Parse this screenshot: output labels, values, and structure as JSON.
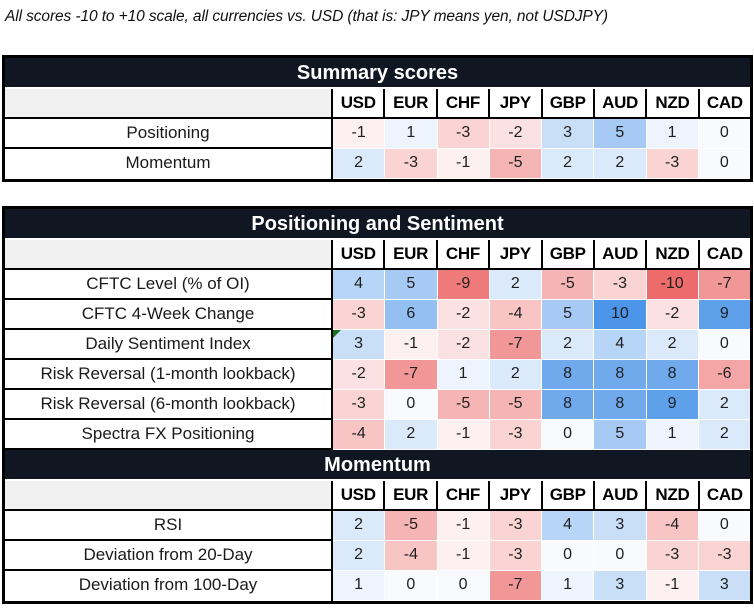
{
  "note": "All scores -10 to +10 scale, all currencies vs. USD (that is: JPY means yen, not USDJPY)",
  "currencies": [
    "USD",
    "EUR",
    "CHF",
    "JPY",
    "GBP",
    "AUD",
    "NZD",
    "CAD"
  ],
  "colors": {
    "positive_scale_end": "#4C95E8",
    "negative_scale_end": "#ED6B6B",
    "scale_zero": "#FFFFFF",
    "scale_zero_tint": "#F8FAFD",
    "title_bar_bg": "#111722",
    "title_bar_text": "#FFFFFF",
    "label_header_bg": "#F1F1F2",
    "table_border": "#000000",
    "comment_marker_green": "#1B6E1B"
  },
  "chart_data": {
    "type": "heatmap",
    "categories": [
      "USD",
      "EUR",
      "CHF",
      "JPY",
      "GBP",
      "AUD",
      "NZD",
      "CAD"
    ],
    "value_range": [
      -10,
      10
    ],
    "sections": [
      {
        "title": "Summary scores",
        "series": [
          {
            "name": "Positioning",
            "values": [
              -1,
              1,
              -3,
              -2,
              3,
              5,
              1,
              0
            ]
          },
          {
            "name": "Momentum",
            "values": [
              2,
              -3,
              -1,
              -5,
              2,
              2,
              -3,
              0
            ]
          }
        ]
      },
      {
        "title": "Positioning and Sentiment",
        "series": [
          {
            "name": "CFTC Level (% of OI)",
            "values": [
              4,
              5,
              -9,
              2,
              -5,
              -3,
              -10,
              -7
            ]
          },
          {
            "name": "CFTC 4-Week Change",
            "values": [
              -3,
              6,
              -2,
              -4,
              5,
              10,
              -2,
              9
            ]
          },
          {
            "name": "Daily Sentiment Index",
            "values": [
              3,
              -1,
              -2,
              -7,
              2,
              4,
              2,
              0
            ]
          },
          {
            "name": "Risk Reversal (1-month lookback)",
            "values": [
              -2,
              -7,
              1,
              2,
              8,
              8,
              8,
              -6
            ]
          },
          {
            "name": "Risk Reversal (6-month lookback)",
            "values": [
              -3,
              0,
              -5,
              -5,
              8,
              8,
              9,
              2
            ]
          },
          {
            "name": "Spectra FX Positioning",
            "values": [
              -4,
              2,
              -1,
              -3,
              0,
              5,
              1,
              2
            ]
          }
        ]
      },
      {
        "title": "Momentum",
        "series": [
          {
            "name": "RSI",
            "values": [
              2,
              -5,
              -1,
              -3,
              4,
              3,
              -4,
              0
            ]
          },
          {
            "name": "Deviation from 20-Day",
            "values": [
              2,
              -4,
              -1,
              -3,
              0,
              0,
              -3,
              -3
            ]
          },
          {
            "name": "Deviation from 100-Day",
            "values": [
              1,
              0,
              0,
              -7,
              1,
              3,
              -1,
              3
            ]
          }
        ]
      }
    ]
  },
  "tables": [
    {
      "sections": [
        {
          "title": "Summary scores",
          "rows": [
            {
              "label": "Positioning",
              "values": [
                -1,
                1,
                -3,
                -2,
                3,
                5,
                1,
                0
              ]
            },
            {
              "label": "Momentum",
              "values": [
                2,
                -3,
                -1,
                -5,
                2,
                2,
                -3,
                0
              ]
            }
          ]
        }
      ]
    },
    {
      "sections": [
        {
          "title": "Positioning and Sentiment",
          "rows": [
            {
              "label": "CFTC Level (% of OI)",
              "values": [
                4,
                5,
                -9,
                2,
                -5,
                -3,
                -10,
                -7
              ]
            },
            {
              "label": "CFTC 4-Week Change",
              "values": [
                -3,
                6,
                -2,
                -4,
                5,
                10,
                -2,
                9
              ]
            },
            {
              "label": "Daily Sentiment Index",
              "values": [
                3,
                -1,
                -2,
                -7,
                2,
                4,
                2,
                0
              ],
              "comment_marker_col": 0
            },
            {
              "label": "Risk Reversal (1-month lookback)",
              "values": [
                -2,
                -7,
                1,
                2,
                8,
                8,
                8,
                -6
              ]
            },
            {
              "label": "Risk Reversal (6-month lookback)",
              "values": [
                -3,
                0,
                -5,
                -5,
                8,
                8,
                9,
                2
              ]
            },
            {
              "label": "Spectra FX Positioning",
              "values": [
                -4,
                2,
                -1,
                -3,
                0,
                5,
                1,
                2
              ]
            }
          ]
        },
        {
          "title": "Momentum",
          "rows": [
            {
              "label": "RSI",
              "values": [
                2,
                -5,
                -1,
                -3,
                4,
                3,
                -4,
                0
              ]
            },
            {
              "label": "Deviation from 20-Day",
              "values": [
                2,
                -4,
                -1,
                -3,
                0,
                0,
                -3,
                -3
              ]
            },
            {
              "label": "Deviation from 100-Day",
              "values": [
                1,
                0,
                0,
                -7,
                1,
                3,
                -1,
                3
              ]
            }
          ]
        }
      ]
    }
  ]
}
